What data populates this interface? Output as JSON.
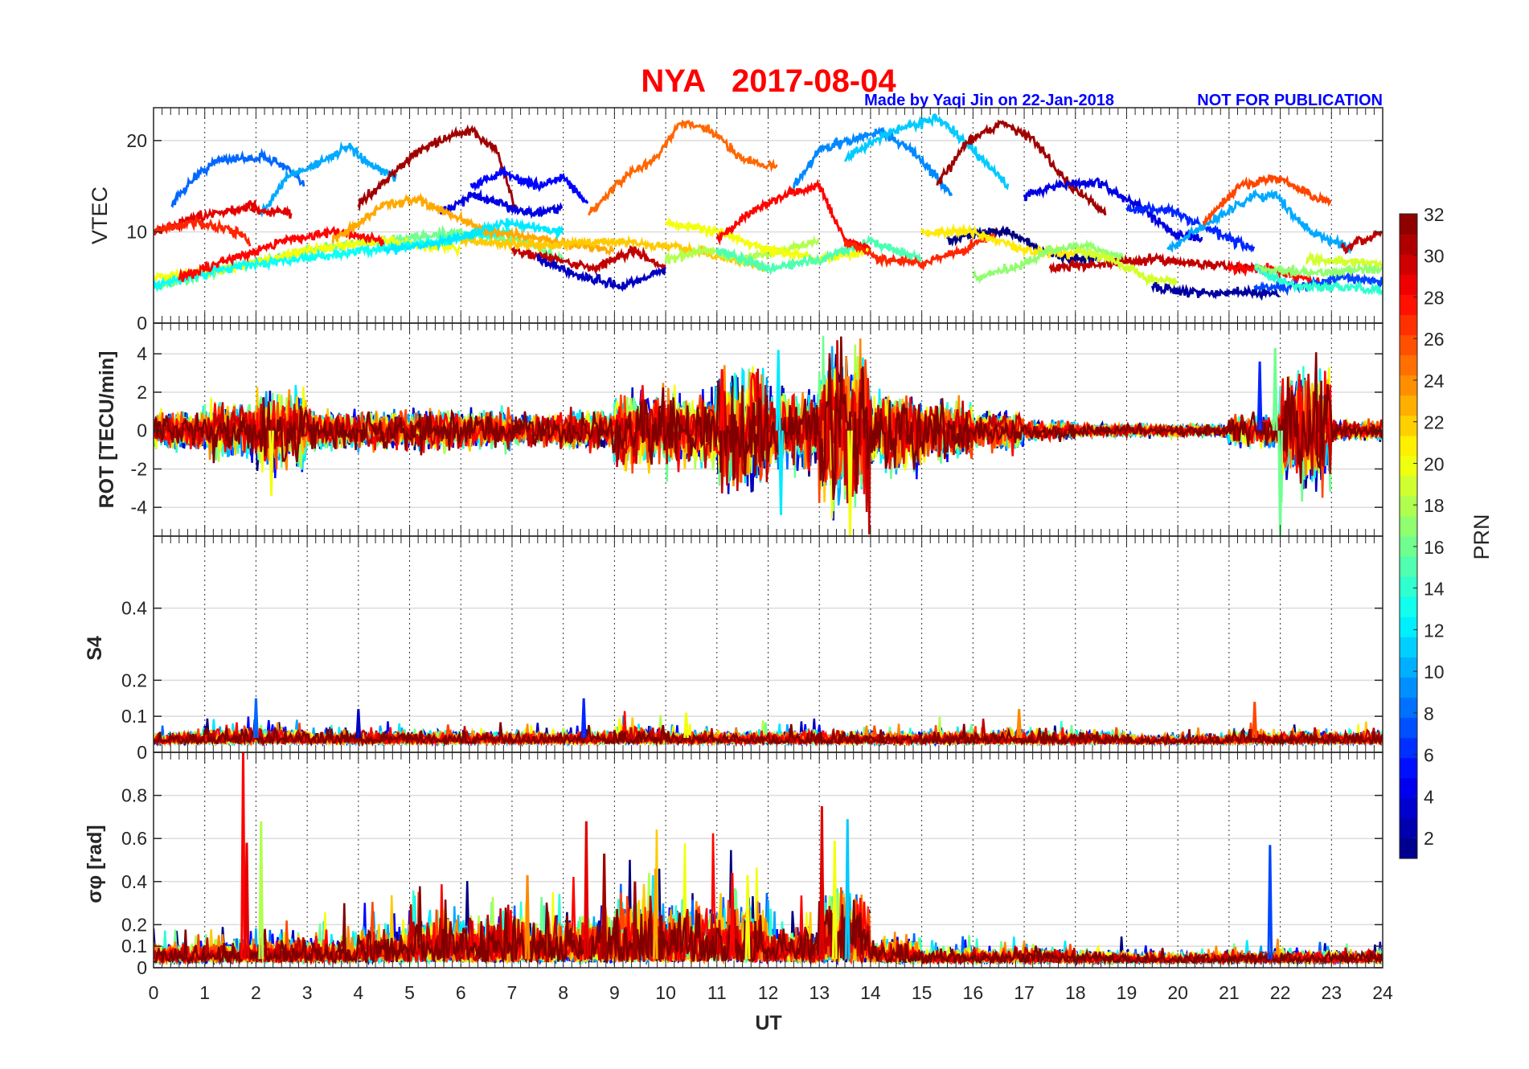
{
  "chart_data": {
    "type": "line",
    "title": "NYA   2017-08-04",
    "author_note": "Made by Yaqi Jin on 22-Jan-2018",
    "publication_note": "NOT FOR PUBLICATION",
    "xlabel": "UT",
    "xlim": [
      0,
      24
    ],
    "xticks": [
      "0",
      "1",
      "2",
      "3",
      "4",
      "5",
      "6",
      "7",
      "8",
      "9",
      "10",
      "11",
      "12",
      "13",
      "14",
      "15",
      "16",
      "17",
      "18",
      "19",
      "20",
      "21",
      "22",
      "23",
      "24"
    ],
    "colors": {
      "title": "#ff0000",
      "note": "#0000ff",
      "grid": "#dcdcdc"
    },
    "colorbar": {
      "label": "PRN",
      "clim": [
        1,
        32
      ],
      "colormap": "jet",
      "ticks": [
        "2",
        "4",
        "6",
        "8",
        "10",
        "12",
        "14",
        "16",
        "18",
        "20",
        "22",
        "24",
        "26",
        "28",
        "30",
        "32"
      ]
    },
    "panels": [
      {
        "name": "vtec",
        "ylabel": "VTEC",
        "ylim": [
          0,
          23.6
        ],
        "yticks": [
          "0",
          "10",
          "20"
        ],
        "series": [
          {
            "prn": 8,
            "t": [
              0.35,
              0.8,
              1.3,
              1.8,
              2.2,
              2.6,
              2.95
            ],
            "v": [
              13,
              16,
              18,
              18,
              18.2,
              17,
              15
            ]
          },
          {
            "prn": 10,
            "t": [
              2.1,
              2.6,
              3.2,
              3.8,
              4.3,
              4.75
            ],
            "v": [
              12,
              16,
              17.5,
              19.3,
              17,
              16
            ]
          },
          {
            "prn": 31,
            "t": [
              4.0,
              4.6,
              5.2,
              5.8,
              6.2,
              6.7,
              7.1
            ],
            "v": [
              13,
              16,
              19,
              20.5,
              21,
              19,
              12
            ]
          },
          {
            "prn": 5,
            "t": [
              6.2,
              6.8,
              7.5,
              8.0,
              8.5
            ],
            "v": [
              15,
              16.5,
              15,
              16,
              13
            ]
          },
          {
            "prn": 4,
            "t": [
              5.6,
              6.2,
              6.8,
              7.4,
              8.0
            ],
            "v": [
              12,
              14,
              13,
              12,
              12.5
            ]
          },
          {
            "prn": 25,
            "t": [
              8.5,
              9.2,
              9.8,
              10.3,
              10.9,
              11.5,
              12.2
            ],
            "v": [
              12,
              16,
              18,
              22,
              21,
              18,
              17
            ]
          },
          {
            "prn": 9,
            "t": [
              12.5,
              13.0,
              13.6,
              14.2,
              14.8,
              15.6
            ],
            "v": [
              15,
              19,
              20,
              21,
              19,
              14
            ]
          },
          {
            "prn": 11,
            "t": [
              13.5,
              14.4,
              15.3,
              16.0,
              16.7
            ],
            "v": [
              18,
              21,
              22.5,
              19,
              15
            ]
          },
          {
            "prn": 31,
            "t": [
              15.3,
              15.9,
              16.6,
              17.2,
              17.9,
              18.6
            ],
            "v": [
              15,
              20,
              22,
              20,
              15,
              12
            ]
          },
          {
            "prn": 4,
            "t": [
              17.0,
              17.6,
              18.4,
              19.2,
              19.9,
              20.5
            ],
            "v": [
              14,
              15,
              15.5,
              13,
              10,
              9
            ]
          },
          {
            "prn": 6,
            "t": [
              19.0,
              19.8,
              20.7,
              21.5
            ],
            "v": [
              12.5,
              12.5,
              10,
              8
            ]
          },
          {
            "prn": 10,
            "t": [
              19.8,
              20.6,
              21.5,
              21.9,
              22.6,
              23.4
            ],
            "v": [
              8,
              11,
              14,
              14,
              10,
              8
            ]
          },
          {
            "prn": 26,
            "t": [
              20.5,
              21.2,
              21.9,
              22.6,
              23.0
            ],
            "v": [
              11,
              15,
              16,
              14,
              13
            ]
          },
          {
            "prn": 30,
            "t": [
              23.2,
              24.0
            ],
            "v": [
              8,
              10
            ]
          },
          {
            "prn": 29,
            "t": [
              0.0,
              0.8,
              1.6,
              2.0
            ],
            "v": [
              10,
              11.5,
              12.5,
              13
            ]
          },
          {
            "prn": 27,
            "t": [
              0.0,
              0.7,
              1.4,
              1.9
            ],
            "v": [
              10,
              11,
              10.5,
              9
            ]
          },
          {
            "prn": 29,
            "t": [
              1.9,
              2.7
            ],
            "v": [
              12.5,
              12
            ]
          },
          {
            "prn": 16,
            "t": [
              0.0,
              1.5,
              3.0,
              4.5,
              6.0,
              7.2,
              8.0
            ],
            "v": [
              4,
              6,
              8,
              9,
              10,
              9,
              7
            ]
          },
          {
            "prn": 20,
            "t": [
              0.0,
              1.5,
              3.0,
              4.5,
              6.0
            ],
            "v": [
              5,
              6,
              8,
              9,
              8
            ]
          },
          {
            "prn": 13,
            "t": [
              0.0,
              1.4,
              2.8,
              4.2,
              5.6,
              7.0
            ],
            "v": [
              4,
              6,
              7,
              8,
              9,
              10
            ]
          },
          {
            "prn": 28,
            "t": [
              0.5,
              1.5,
              2.5,
              3.5,
              4.5
            ],
            "v": [
              5,
              7,
              9,
              10,
              9
            ]
          },
          {
            "prn": 23,
            "t": [
              3.5,
              4.5,
              5.2,
              6.5,
              7.8,
              9.0
            ],
            "v": [
              9,
              13,
              13.5,
              10,
              9,
              8
            ]
          },
          {
            "prn": 30,
            "t": [
              7.0,
              7.8,
              8.6,
              9.4,
              10.0
            ],
            "v": [
              8,
              7,
              6,
              8,
              6
            ]
          },
          {
            "prn": 3,
            "t": [
              7.5,
              8.4,
              9.2,
              10.0
            ],
            "v": [
              7,
              5,
              4,
              6
            ]
          },
          {
            "prn": 22,
            "t": [
              6.0,
              7.5,
              9.0,
              10.5,
              12.0
            ],
            "v": [
              9,
              8.5,
              9,
              8,
              6
            ]
          },
          {
            "prn": 12,
            "t": [
              4.5,
              5.7,
              6.9,
              8.0
            ],
            "v": [
              8,
              9,
              11,
              10
            ]
          },
          {
            "prn": 18,
            "t": [
              10.0,
              10.8,
              11.5,
              12.3,
              13.0
            ],
            "v": [
              7,
              8,
              7,
              8,
              9
            ]
          },
          {
            "prn": 20,
            "t": [
              10.0,
              11.0,
              12.0,
              13.0,
              14.0
            ],
            "v": [
              11,
              10,
              8,
              7,
              8
            ]
          },
          {
            "prn": 15,
            "t": [
              11.0,
              12.0,
              13.0,
              14.0,
              15.0
            ],
            "v": [
              8,
              6,
              7,
              9,
              7
            ]
          },
          {
            "prn": 28,
            "t": [
              11.0,
              11.6,
              12.3,
              13.0,
              13.5,
              14.0
            ],
            "v": [
              9,
              12,
              14,
              15,
              9,
              8
            ]
          },
          {
            "prn": 27,
            "t": [
              13.5,
              14.2,
              15.0,
              15.8,
              16.5
            ],
            "v": [
              9,
              7,
              6.5,
              8,
              10
            ]
          },
          {
            "prn": 1,
            "t": [
              15.5,
              16.1,
              16.7,
              17.3,
              17.9,
              18.5
            ],
            "v": [
              9,
              10,
              10,
              8,
              7,
              7
            ]
          },
          {
            "prn": 21,
            "t": [
              15.0,
              16.0,
              17.0,
              18.0
            ],
            "v": [
              10,
              10,
              8,
              7.5
            ]
          },
          {
            "prn": 17,
            "t": [
              16.0,
              16.8,
              17.5,
              18.2,
              19.0
            ],
            "v": [
              5,
              6,
              8,
              8.5,
              7
            ]
          },
          {
            "prn": 30,
            "t": [
              17.5,
              18.5,
              19.5,
              20.5,
              21.5
            ],
            "v": [
              6,
              6.5,
              7,
              6.5,
              6
            ]
          },
          {
            "prn": 19,
            "t": [
              18.0,
              18.7,
              19.4,
              20.0
            ],
            "v": [
              8,
              7,
              5,
              4.5
            ]
          },
          {
            "prn": 2,
            "t": [
              19.5,
              20.1,
              20.8,
              21.4,
              22.0
            ],
            "v": [
              4,
              3.5,
              3.2,
              3.5,
              3
            ]
          },
          {
            "prn": 28,
            "t": [
              21.0,
              21.7,
              22.4,
              23.0
            ],
            "v": [
              6,
              6,
              5,
              4
            ]
          },
          {
            "prn": 7,
            "t": [
              21.5,
              22.4,
              23.2,
              24.0
            ],
            "v": [
              4,
              4,
              5,
              4.5
            ]
          },
          {
            "prn": 14,
            "t": [
              21.5,
              22.3,
              23.1,
              24.0
            ],
            "v": [
              6,
              4,
              4,
              3.5
            ]
          },
          {
            "prn": 19,
            "t": [
              22.5,
              24.0
            ],
            "v": [
              7,
              6.5
            ]
          },
          {
            "prn": 17,
            "t": [
              21.5,
              22.7,
              24.0
            ],
            "v": [
              6,
              5.5,
              6
            ]
          }
        ]
      },
      {
        "name": "rot",
        "ylabel": "ROT [TECU/min]",
        "ylim": [
          -5.5,
          5.6
        ],
        "yticks": [
          "-4",
          "-2",
          "0",
          "2",
          "4"
        ],
        "prns": [
          1,
          3,
          5,
          8,
          10,
          12,
          14,
          16,
          18,
          20,
          22,
          24,
          26,
          28,
          30,
          32
        ],
        "hourly_amplitude": [
          1,
          1.5,
          2,
          1,
          1,
          1,
          1,
          0.8,
          1,
          2,
          2,
          3,
          2,
          4,
          2,
          1.5,
          1,
          0.5,
          0.3,
          0.3,
          0.3,
          0.8,
          3,
          0.5
        ],
        "spikes": [
          {
            "prn": 12,
            "t": 12.2,
            "v": 4.2
          },
          {
            "prn": 12,
            "t": 12.25,
            "v": -4.4
          },
          {
            "prn": 20,
            "t": 13.6,
            "v": -5.5
          },
          {
            "prn": 16,
            "t": 21.9,
            "v": 4.3
          },
          {
            "prn": 16,
            "t": 22.0,
            "v": -5.5
          },
          {
            "prn": 20,
            "t": 2.3,
            "v": -3.4
          },
          {
            "prn": 6,
            "t": 21.6,
            "v": 3.6
          },
          {
            "prn": 28,
            "t": 11.1,
            "v": 3.2
          }
        ]
      },
      {
        "name": "s4",
        "ylabel": "S4",
        "ylim": [
          0,
          0.6
        ],
        "yticks": [
          "0",
          "0.1",
          "0.2",
          "0.4"
        ],
        "prns": [
          1,
          3,
          5,
          8,
          10,
          12,
          14,
          16,
          18,
          20,
          22,
          24,
          26,
          28,
          30,
          32
        ],
        "hourly_amplitude": [
          0.03,
          0.04,
          0.04,
          0.03,
          0.03,
          0.03,
          0.03,
          0.03,
          0.03,
          0.04,
          0.03,
          0.03,
          0.03,
          0.03,
          0.03,
          0.03,
          0.03,
          0.03,
          0.03,
          0.02,
          0.02,
          0.03,
          0.03,
          0.03
        ],
        "spikes": [
          {
            "prn": 8,
            "t": 2.0,
            "v": 0.15
          },
          {
            "prn": 6,
            "t": 8.4,
            "v": 0.15
          },
          {
            "prn": 24,
            "t": 16.9,
            "v": 0.12
          },
          {
            "prn": 26,
            "t": 21.5,
            "v": 0.14
          },
          {
            "prn": 3,
            "t": 4.0,
            "v": 0.12
          },
          {
            "prn": 20,
            "t": 10.4,
            "v": 0.11
          }
        ]
      },
      {
        "name": "sigma_phi",
        "ylabel": "σφ [rad]",
        "ylim": [
          0,
          1.0
        ],
        "yticks": [
          "0",
          "0.1",
          "0.2",
          "0.4",
          "0.6",
          "0.8"
        ],
        "prns": [
          1,
          3,
          5,
          8,
          10,
          12,
          14,
          16,
          18,
          20,
          22,
          24,
          26,
          28,
          30,
          32
        ],
        "hourly_amplitude": [
          0.08,
          0.1,
          0.12,
          0.1,
          0.15,
          0.2,
          0.2,
          0.2,
          0.2,
          0.25,
          0.25,
          0.25,
          0.15,
          0.3,
          0.1,
          0.06,
          0.06,
          0.06,
          0.05,
          0.04,
          0.04,
          0.05,
          0.05,
          0.05
        ],
        "spikes": [
          {
            "prn": 28,
            "t": 1.75,
            "v": 1.0
          },
          {
            "prn": 29,
            "t": 1.82,
            "v": 0.58
          },
          {
            "prn": 18,
            "t": 2.1,
            "v": 0.68
          },
          {
            "prn": 29,
            "t": 8.45,
            "v": 0.68
          },
          {
            "prn": 31,
            "t": 8.8,
            "v": 0.53
          },
          {
            "prn": 29,
            "t": 13.05,
            "v": 0.75
          },
          {
            "prn": 11,
            "t": 13.55,
            "v": 0.69
          },
          {
            "prn": 7,
            "t": 21.8,
            "v": 0.57
          },
          {
            "prn": 31,
            "t": 9.4,
            "v": 0.4
          },
          {
            "prn": 23,
            "t": 9.8,
            "v": 0.46
          },
          {
            "prn": 28,
            "t": 11.3,
            "v": 0.44
          },
          {
            "prn": 24,
            "t": 7.3,
            "v": 0.43
          },
          {
            "prn": 20,
            "t": 11.6,
            "v": 0.43
          },
          {
            "prn": 20,
            "t": 13.3,
            "v": 0.59
          }
        ]
      }
    ]
  }
}
